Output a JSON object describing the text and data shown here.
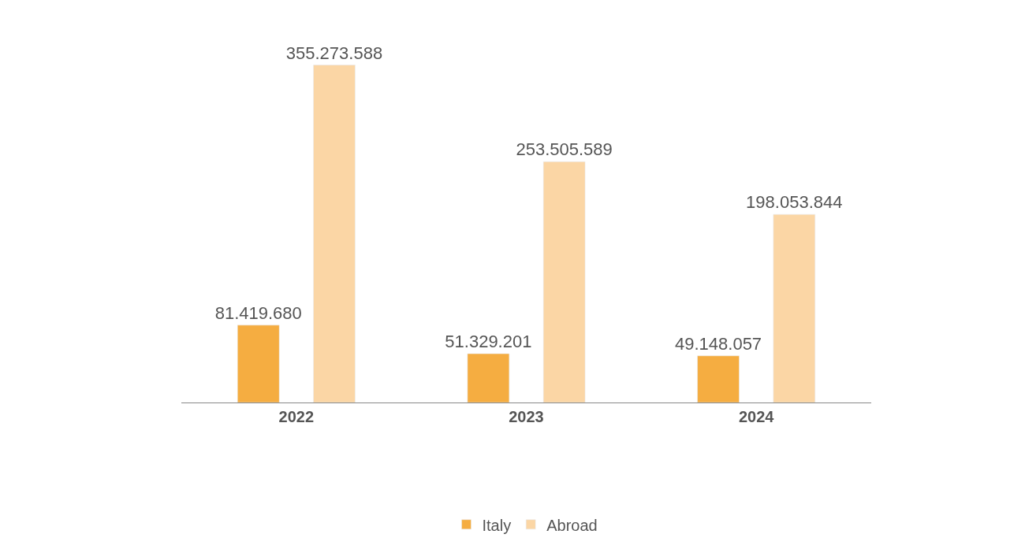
{
  "chart_data": {
    "type": "bar",
    "categories": [
      "2022",
      "2023",
      "2024"
    ],
    "series": [
      {
        "name": "Italy",
        "color": "#f5ad41",
        "values": [
          81419680,
          51329201,
          49148057
        ],
        "value_labels": [
          "81.419.680",
          "51.329.201",
          "49.148.057"
        ]
      },
      {
        "name": "Abroad",
        "color": "#fbd6a5",
        "values": [
          355273588,
          253505589,
          198053844
        ],
        "value_labels": [
          "355.273.588",
          "253.505.589",
          "198.053.844"
        ]
      }
    ],
    "tick_labels": "x",
    "legend": "bottom"
  }
}
